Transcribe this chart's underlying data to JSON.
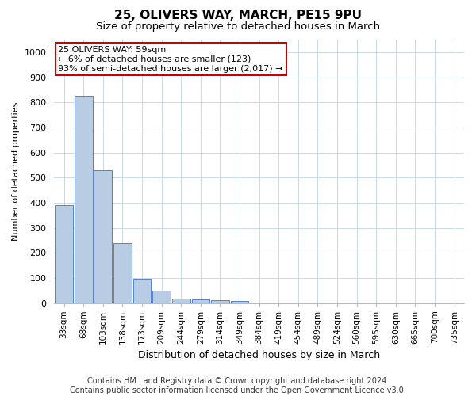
{
  "title": "25, OLIVERS WAY, MARCH, PE15 9PU",
  "subtitle": "Size of property relative to detached houses in March",
  "xlabel": "Distribution of detached houses by size in March",
  "ylabel": "Number of detached properties",
  "categories": [
    "33sqm",
    "68sqm",
    "103sqm",
    "138sqm",
    "173sqm",
    "209sqm",
    "244sqm",
    "279sqm",
    "314sqm",
    "349sqm",
    "384sqm",
    "419sqm",
    "454sqm",
    "489sqm",
    "524sqm",
    "560sqm",
    "595sqm",
    "630sqm",
    "665sqm",
    "700sqm",
    "735sqm"
  ],
  "values": [
    390,
    825,
    530,
    238,
    95,
    50,
    18,
    15,
    10,
    7,
    0,
    0,
    0,
    0,
    0,
    0,
    0,
    0,
    0,
    0,
    0
  ],
  "bar_color": "#b8cce4",
  "bar_edge_color": "#4472c4",
  "annotation_text": "25 OLIVERS WAY: 59sqm\n← 6% of detached houses are smaller (123)\n93% of semi-detached houses are larger (2,017) →",
  "annotation_box_color": "#ffffff",
  "annotation_box_edge_color": "#cc0000",
  "ylim": [
    0,
    1050
  ],
  "yticks": [
    0,
    100,
    200,
    300,
    400,
    500,
    600,
    700,
    800,
    900,
    1000
  ],
  "footer_line1": "Contains HM Land Registry data © Crown copyright and database right 2024.",
  "footer_line2": "Contains public sector information licensed under the Open Government Licence v3.0.",
  "bg_color": "#ffffff",
  "grid_color": "#c8d8e8",
  "title_fontsize": 11,
  "subtitle_fontsize": 9.5,
  "xlabel_fontsize": 9,
  "ylabel_fontsize": 8,
  "tick_fontsize": 7.5,
  "footer_fontsize": 7
}
